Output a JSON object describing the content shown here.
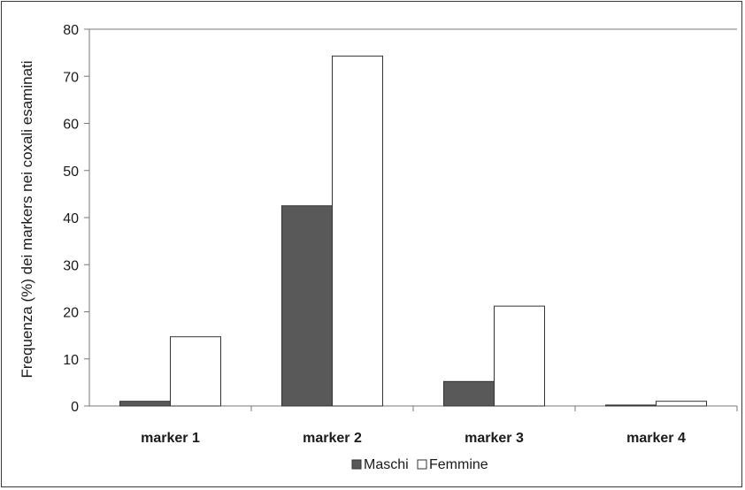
{
  "chart_data": {
    "type": "bar",
    "title": "",
    "xlabel": "",
    "ylabel": "Frequenza (%) dei markers nei coxali esaminati",
    "ylim": [
      0,
      80
    ],
    "yticks": [
      0,
      10,
      20,
      30,
      40,
      50,
      60,
      70,
      80
    ],
    "grid": false,
    "legend_position": "bottom",
    "categories": [
      "marker 1",
      "marker 2",
      "marker 3",
      "marker 4"
    ],
    "series": [
      {
        "name": "Maschi",
        "color": "#595959",
        "values": [
          1.0,
          42.5,
          5.2,
          0.2
        ]
      },
      {
        "name": "Femmine",
        "color": "#ffffff",
        "values": [
          14.7,
          74.3,
          21.2,
          1.0
        ]
      }
    ]
  }
}
